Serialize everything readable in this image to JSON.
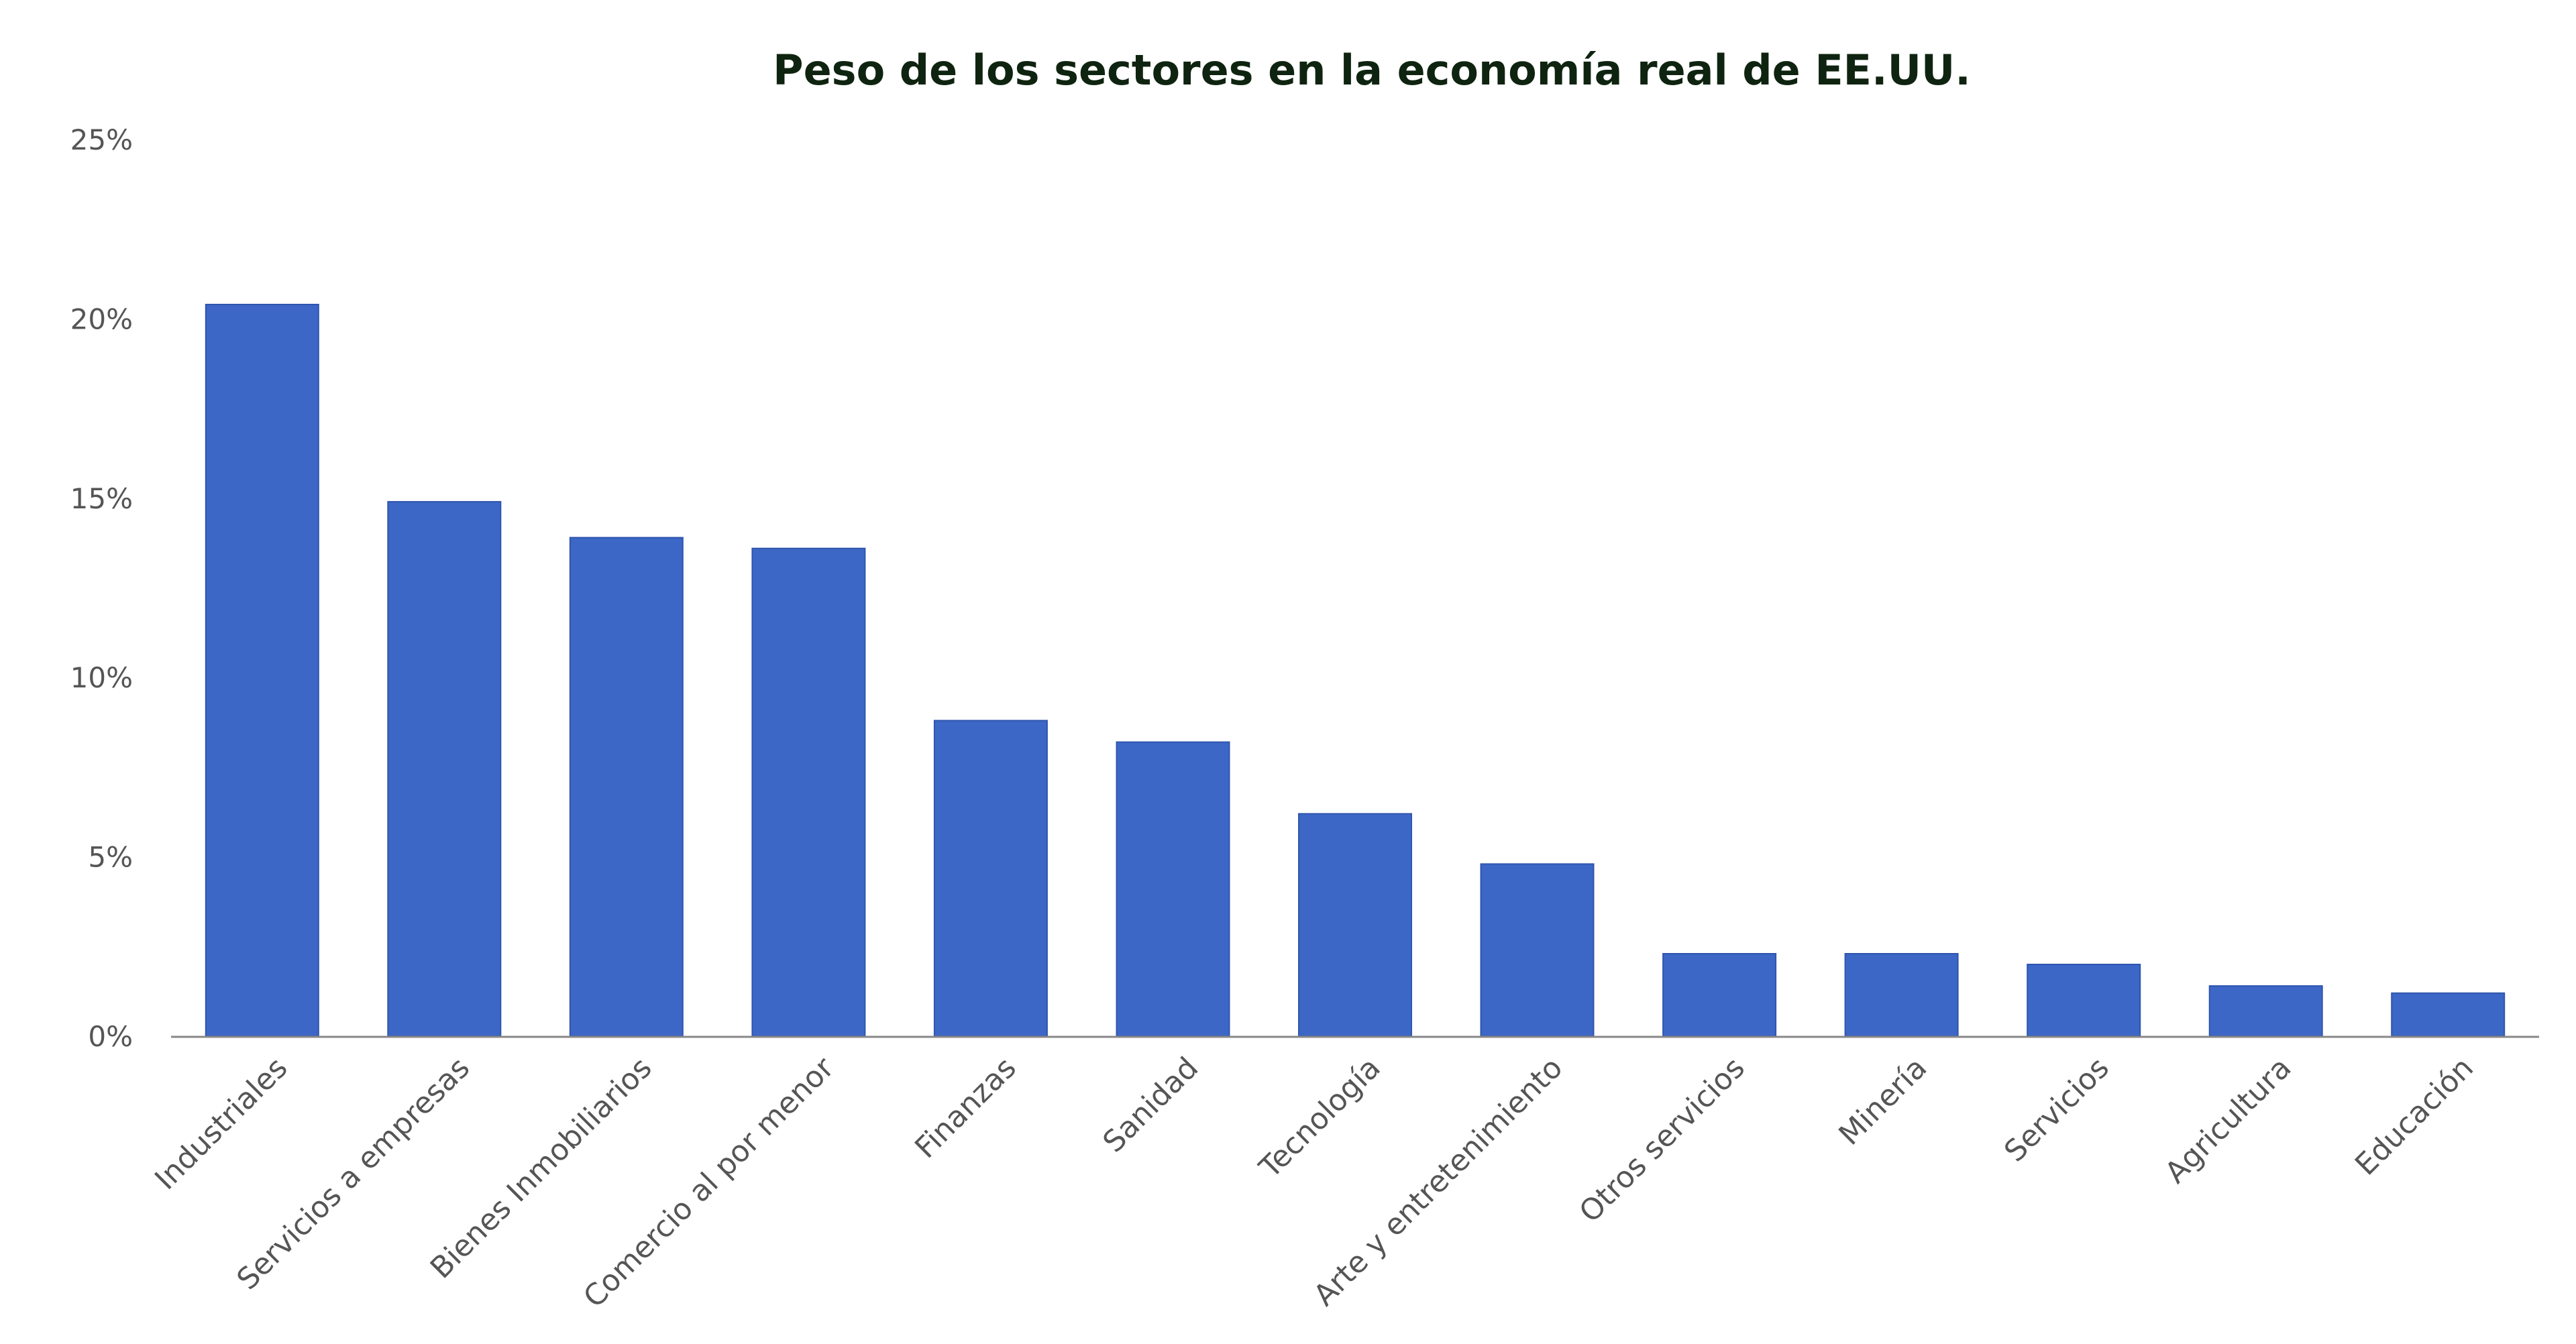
{
  "colors": {
    "bar": "#3c67c6",
    "bar_stroke": "#2f55ad",
    "axis": "#888888",
    "title": "#0f2410",
    "tick": "#555555"
  },
  "chart_data": {
    "type": "bar",
    "title": "Peso de los sectores en la economía real de EE.UU.",
    "xlabel": "",
    "ylabel": "",
    "ylim": [
      0,
      25
    ],
    "yticks": [
      0,
      5,
      10,
      15,
      20,
      25
    ],
    "ytick_labels": [
      "0%",
      "5%",
      "10%",
      "15%",
      "20%",
      "25%"
    ],
    "grid": false,
    "legend": "none",
    "categories": [
      "Industriales",
      "Servicios a empresas",
      "Bienes Inmobiliarios",
      "Comercio al por menor",
      "Finanzas",
      "Sanidad",
      "Tecnología",
      "Arte y entretenimiento",
      "Otros servicios",
      "Minería",
      "Servicios",
      "Agricultura",
      "Educación"
    ],
    "values": [
      20.4,
      14.9,
      13.9,
      13.6,
      8.8,
      8.2,
      6.2,
      4.8,
      2.3,
      2.3,
      2.0,
      1.4,
      1.2
    ]
  }
}
